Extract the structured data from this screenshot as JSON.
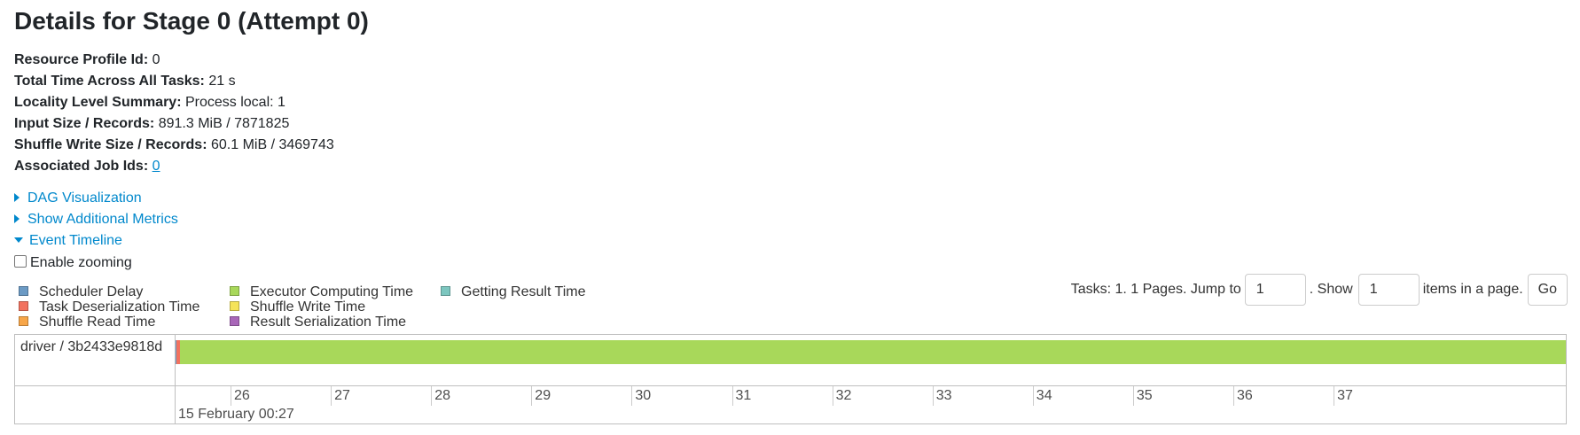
{
  "page_title": "Details for Stage 0 (Attempt 0)",
  "summary": {
    "resource_profile_label": "Resource Profile Id:",
    "resource_profile_value": "0",
    "total_time_label": "Total Time Across All Tasks:",
    "total_time_value": "21 s",
    "locality_label": "Locality Level Summary:",
    "locality_value": "Process local: 1",
    "input_label": "Input Size / Records:",
    "input_value": "891.3 MiB / 7871825",
    "shuffle_write_label": "Shuffle Write Size / Records:",
    "shuffle_write_value": "60.1 MiB / 3469743",
    "job_ids_label": "Associated Job Ids:",
    "job_ids_value": "0"
  },
  "expanders": {
    "dag": "DAG Visualization",
    "additional_metrics": "Show Additional Metrics",
    "event_timeline": "Event Timeline"
  },
  "enable_zooming": {
    "label": "Enable zooming",
    "checked": false
  },
  "legend": [
    {
      "label": "Scheduler Delay",
      "color": "#6b9ac4"
    },
    {
      "label": "Task Deserialization Time",
      "color": "#f2725f"
    },
    {
      "label": "Shuffle Read Time",
      "color": "#f7a649"
    },
    {
      "label": "Executor Computing Time",
      "color": "#a8d85a"
    },
    {
      "label": "Shuffle Write Time",
      "color": "#f5e35a"
    },
    {
      "label": "Result Serialization Time",
      "color": "#a866b8"
    },
    {
      "label": "Getting Result Time",
      "color": "#7cc6bf"
    }
  ],
  "pager": {
    "tasks_text": "Tasks: 1. 1 Pages. Jump to",
    "jump_value": "1",
    "show_text": ". Show",
    "show_value": "1",
    "items_text": "items in a page.",
    "go_label": "Go"
  },
  "timeline": {
    "group_label": "driver / 3b2433e9818d",
    "ticks": [
      "26",
      "27",
      "28",
      "29",
      "30",
      "31",
      "32",
      "33",
      "34",
      "35",
      "36",
      "37"
    ],
    "date_label": "15 February 00:27"
  }
}
